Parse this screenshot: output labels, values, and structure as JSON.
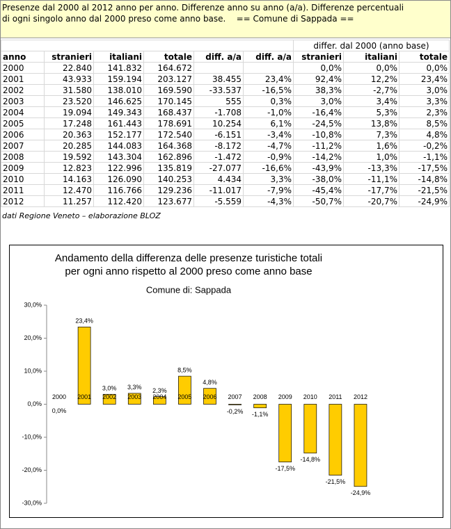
{
  "header": {
    "lines": [
      "Presenze dal 2000 al 2012 anno per anno. Differenze anno su anno (a/a). Differenze percentuali",
      "di ogni singolo anno dal 2000 preso come anno base.    == Comune di Sappada =="
    ]
  },
  "table": {
    "group_header": "differ. dal 2000 (anno base)",
    "columns": [
      "anno",
      "stranieri",
      "italiani",
      "totale",
      "diff. a/a",
      "diff. a/a",
      "stranieri",
      "italiani",
      "totale"
    ],
    "rows": [
      [
        "2000",
        "22.840",
        "141.832",
        "164.672",
        null,
        null,
        "0,0%",
        "0,0%",
        "0,0%"
      ],
      [
        "2001",
        "43.933",
        "159.194",
        "203.127",
        "38.455",
        "23,4%",
        "92,4%",
        "12,2%",
        "23,4%"
      ],
      [
        "2002",
        "31.580",
        "138.010",
        "169.590",
        "-33.537",
        "-16,5%",
        "38,3%",
        "-2,7%",
        "3,0%"
      ],
      [
        "2003",
        "23.520",
        "146.625",
        "170.145",
        "555",
        "0,3%",
        "3,0%",
        "3,4%",
        "3,3%"
      ],
      [
        "2004",
        "19.094",
        "149.343",
        "168.437",
        "-1.708",
        "-1,0%",
        "-16,4%",
        "5,3%",
        "2,3%"
      ],
      [
        "2005",
        "17.248",
        "161.443",
        "178.691",
        "10.254",
        "6,1%",
        "-24,5%",
        "13,8%",
        "8,5%"
      ],
      [
        "2006",
        "20.363",
        "152.177",
        "172.540",
        "-6.151",
        "-3,4%",
        "-10,8%",
        "7,3%",
        "4,8%"
      ],
      [
        "2007",
        "20.285",
        "144.083",
        "164.368",
        "-8.172",
        "-4,7%",
        "-11,2%",
        "1,6%",
        "-0,2%"
      ],
      [
        "2008",
        "19.592",
        "143.304",
        "162.896",
        "-1.472",
        "-0,9%",
        "-14,2%",
        "1,0%",
        "-1,1%"
      ],
      [
        "2009",
        "12.823",
        "122.996",
        "135.819",
        "-27.077",
        "-16,6%",
        "-43,9%",
        "-13,3%",
        "-17,5%"
      ],
      [
        "2010",
        "14.163",
        "126.090",
        "140.253",
        "4.434",
        "3,3%",
        "-38,0%",
        "-11,1%",
        "-14,8%"
      ],
      [
        "2011",
        "12.470",
        "116.766",
        "129.236",
        "-11.017",
        "-7,9%",
        "-45,4%",
        "-17,7%",
        "-21,5%"
      ],
      [
        "2012",
        "11.257",
        "112.420",
        "123.677",
        "-5.559",
        "-4,3%",
        "-50,7%",
        "-20,7%",
        "-24,9%"
      ]
    ]
  },
  "source": "dati Regione Veneto – elaborazione BLOZ",
  "chart_data": {
    "type": "bar",
    "title": [
      "Andamento della differenza delle presenze turistiche totali",
      "per ogni anno rispetto al 2000 preso come anno base"
    ],
    "subtitle": "Comune di: Sappada",
    "categories": [
      "2000",
      "2001",
      "2002",
      "2003",
      "2004",
      "2005",
      "2006",
      "2007",
      "2008",
      "2009",
      "2010",
      "2011",
      "2012"
    ],
    "values": [
      0.0,
      23.4,
      3.0,
      3.3,
      2.3,
      8.5,
      4.8,
      -0.2,
      -1.1,
      -17.5,
      -14.8,
      -21.5,
      -24.9
    ],
    "value_labels": [
      "0,0%",
      "23,4%",
      "3,0%",
      "3,3%",
      "2,3%",
      "8,5%",
      "4,8%",
      "-0,2%",
      "-1,1%",
      "-17,5%",
      "-14,8%",
      "-21,5%",
      "-24,9%"
    ],
    "color": "#ffcc00",
    "ylim": [
      -30,
      30
    ],
    "yticks": [
      {
        "value": -30,
        "label": "-30,0%"
      },
      {
        "value": -20,
        "label": "-20,0%"
      },
      {
        "value": -10,
        "label": "-10,0%"
      },
      {
        "value": 0,
        "label": "0,0%"
      },
      {
        "value": 10,
        "label": "10,0%"
      },
      {
        "value": 20,
        "label": "20,0%"
      },
      {
        "value": 30,
        "label": "30,0%"
      }
    ]
  }
}
